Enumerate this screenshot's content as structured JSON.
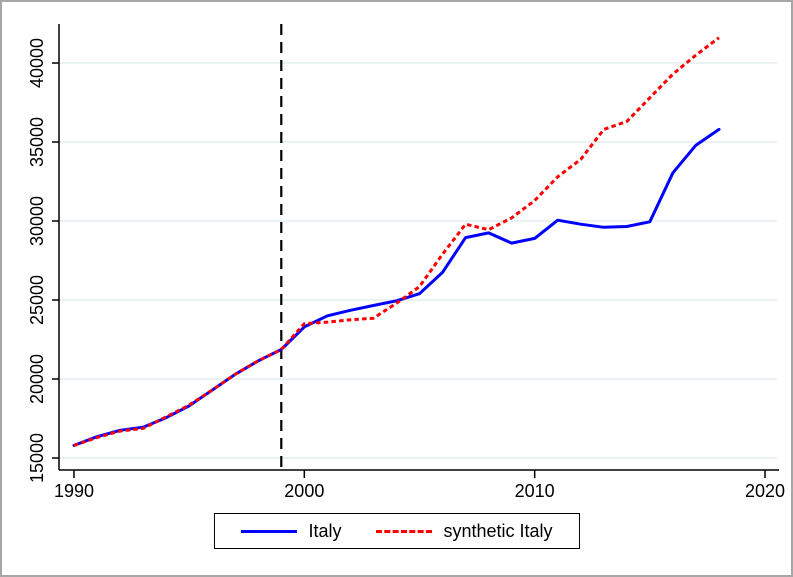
{
  "chart_data": {
    "type": "line",
    "title": "",
    "xlabel": "",
    "ylabel": "",
    "x": [
      1990,
      1991,
      1992,
      1993,
      1994,
      1995,
      1996,
      1997,
      1998,
      1999,
      2000,
      2001,
      2002,
      2003,
      2004,
      2005,
      2006,
      2007,
      2008,
      2009,
      2010,
      2011,
      2012,
      2013,
      2014,
      2015,
      2016,
      2017,
      2018
    ],
    "series": [
      {
        "name": "Italy",
        "color": "#0000ff",
        "style": "solid",
        "values": [
          15800,
          16350,
          16750,
          16950,
          17550,
          18300,
          19300,
          20300,
          21150,
          21870,
          23300,
          24000,
          24350,
          24650,
          24950,
          25400,
          26750,
          28950,
          29250,
          28600,
          28900,
          30050,
          29800,
          29600,
          29650,
          29950,
          33050,
          34800,
          35800
        ]
      },
      {
        "name": "synthetic Italy",
        "color": "#ff0000",
        "style": "dotted",
        "values": [
          15800,
          16300,
          16700,
          16870,
          17600,
          18350,
          19300,
          20300,
          21150,
          21870,
          23500,
          23600,
          23750,
          23850,
          24800,
          25850,
          27900,
          29800,
          29450,
          30200,
          31300,
          32800,
          33900,
          35800,
          36300,
          37800,
          39300,
          40500,
          41600
        ]
      }
    ],
    "xticks": [
      1990,
      2000,
      2010,
      2020
    ],
    "yticks": [
      15000,
      20000,
      25000,
      30000,
      35000,
      40000
    ],
    "xlim": [
      1989.35,
      2020.52
    ],
    "ylim": [
      14240,
      42470
    ],
    "grid": "horizontal",
    "gridline_color": "#eaf2f3",
    "axis_color": "#000000",
    "background_color": "#ffffff",
    "vline": {
      "x": 1999,
      "style": "dashed",
      "color": "#000000"
    },
    "legend": {
      "position": "bottom-center",
      "border_color": "#000000"
    }
  },
  "legend": {
    "entries": [
      {
        "label": "Italy"
      },
      {
        "label": "synthetic Italy"
      }
    ]
  }
}
